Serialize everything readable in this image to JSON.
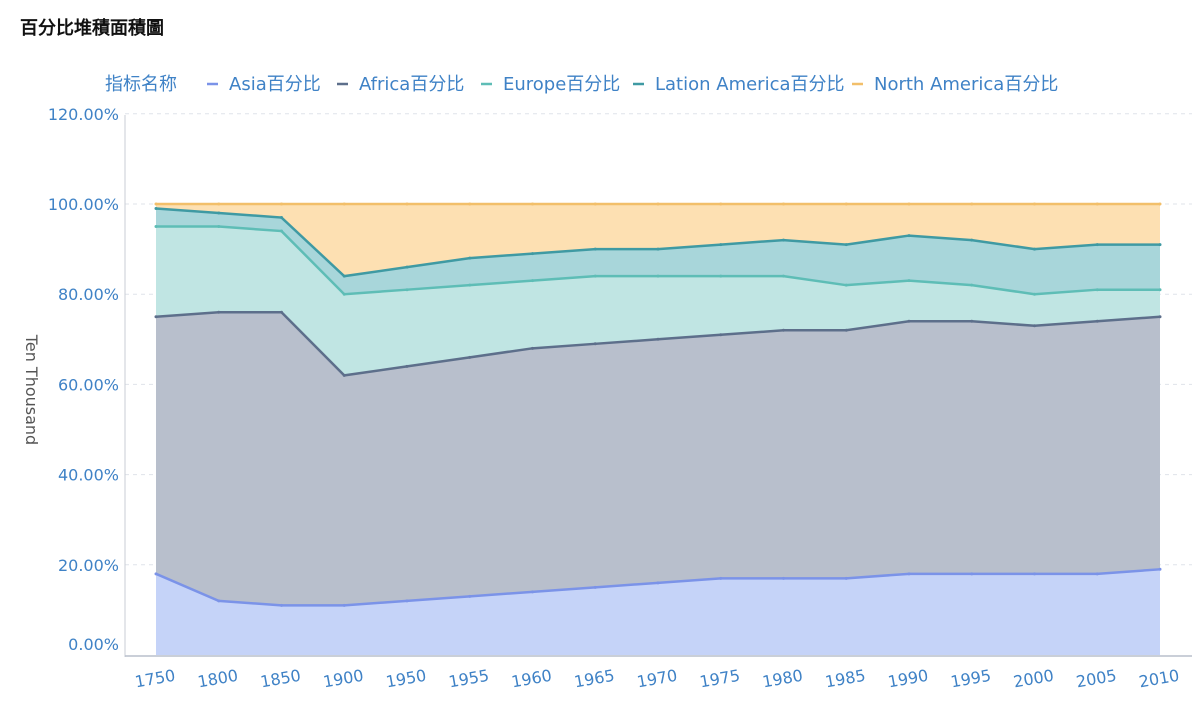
{
  "page": {
    "title": "百分比堆積面積圖"
  },
  "legend": {
    "title": "指标名称",
    "items": [
      {
        "label": "Asia百分比",
        "color": "#7b93e8"
      },
      {
        "label": "Africa百分比",
        "color": "#5d6f8b"
      },
      {
        "label": "Europe百分比",
        "color": "#5ebdb6"
      },
      {
        "label": "Lation America百分比",
        "color": "#3f9aa3"
      },
      {
        "label": "North America百分比",
        "color": "#f2bf6a"
      }
    ]
  },
  "chart_data": {
    "type": "area",
    "stacked": true,
    "percent": true,
    "ylabel": "Ten Thousand",
    "xlabel": "",
    "categories": [
      "1750",
      "1800",
      "1850",
      "1900",
      "1950",
      "1955",
      "1960",
      "1965",
      "1970",
      "1975",
      "1980",
      "1985",
      "1990",
      "1995",
      "2000",
      "2005",
      "2010"
    ],
    "yticks": [
      "0.00%",
      "20.00%",
      "40.00%",
      "60.00%",
      "80.00%",
      "100.00%",
      "120.00%"
    ],
    "ylim": [
      0,
      120
    ],
    "grid": true,
    "legend_position": "top",
    "series": [
      {
        "name": "Asia百分比",
        "color": "#7b93e8",
        "fill": "#c5d3f8",
        "values": [
          18,
          12,
          11,
          11,
          12,
          13,
          14,
          15,
          16,
          17,
          17,
          17,
          18,
          18,
          18,
          18,
          19
        ]
      },
      {
        "name": "Africa百分比",
        "color": "#5d6f8b",
        "fill": "#b8bfcc",
        "values": [
          75,
          76,
          76,
          62,
          64,
          66,
          68,
          69,
          70,
          71,
          72,
          72,
          74,
          74,
          73,
          74,
          75
        ]
      },
      {
        "name": "Europe百分比",
        "color": "#5ebdb6",
        "fill": "#c0e5e3",
        "values": [
          95,
          95,
          94,
          80,
          81,
          82,
          83,
          84,
          84,
          84,
          84,
          82,
          83,
          82,
          80,
          81,
          81
        ]
      },
      {
        "name": "Lation America百分比",
        "color": "#3f9aa3",
        "fill": "#a8d6da",
        "values": [
          99,
          98,
          97,
          84,
          86,
          88,
          89,
          90,
          90,
          91,
          92,
          91,
          93,
          92,
          90,
          91,
          91
        ]
      },
      {
        "name": "North America百分比",
        "color": "#f2bf6a",
        "fill": "#fde0b2",
        "values": [
          100,
          100,
          100,
          100,
          100,
          100,
          100,
          100,
          100,
          100,
          100,
          100,
          100,
          100,
          100,
          100,
          100
        ]
      }
    ]
  }
}
